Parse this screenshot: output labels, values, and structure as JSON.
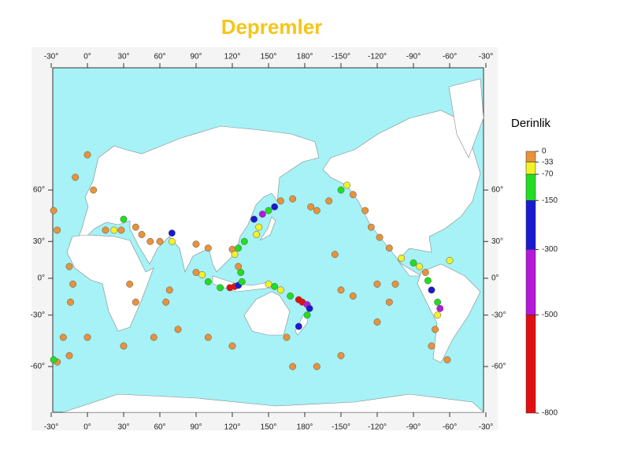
{
  "title": "Depremler",
  "legend": {
    "title": "Derinlik",
    "ticks": [
      0,
      -33,
      -70,
      -150,
      -300,
      -500,
      -800
    ],
    "colors": [
      "#e8923a",
      "#f2f22a",
      "#22dd22",
      "#1a1ad0",
      "#b418d8",
      "#e01010"
    ]
  },
  "map": {
    "lon_ticks": [
      {
        "value": -30,
        "label": "-30°"
      },
      {
        "value": 0,
        "label": "0°"
      },
      {
        "value": 30,
        "label": "30°"
      },
      {
        "value": 60,
        "label": "60°"
      },
      {
        "value": 90,
        "label": "90°"
      },
      {
        "value": 120,
        "label": "120°"
      },
      {
        "value": 150,
        "label": "150°"
      },
      {
        "value": 180,
        "label": "180°"
      },
      {
        "value": -150,
        "label": "-150°"
      },
      {
        "value": -120,
        "label": "-120°"
      },
      {
        "value": -90,
        "label": "-90°"
      },
      {
        "value": -60,
        "label": "-60°"
      },
      {
        "value": -30,
        "label": "-30°"
      }
    ],
    "lat_ticks": [
      {
        "value": 60,
        "label": "60°"
      },
      {
        "value": 30,
        "label": "30°"
      },
      {
        "value": 0,
        "label": "0°"
      },
      {
        "value": -30,
        "label": "-30°"
      },
      {
        "value": -60,
        "label": "-60°"
      }
    ],
    "earthquakes": [
      [
        -25,
        38,
        -10
      ],
      [
        -28,
        50,
        -10
      ],
      [
        -15,
        10,
        -10
      ],
      [
        -12,
        -5,
        -10
      ],
      [
        -14,
        -20,
        -10
      ],
      [
        -20,
        -45,
        -10
      ],
      [
        -15,
        -55,
        -10
      ],
      [
        -25,
        -58,
        -10
      ],
      [
        -28,
        -57,
        -80
      ],
      [
        0,
        72,
        -10
      ],
      [
        5,
        60,
        -10
      ],
      [
        -10,
        65,
        -10
      ],
      [
        15,
        38,
        -20
      ],
      [
        22,
        38,
        -50
      ],
      [
        28,
        38,
        -10
      ],
      [
        40,
        40,
        -20
      ],
      [
        45,
        35,
        -10
      ],
      [
        52,
        30,
        -10
      ],
      [
        60,
        30,
        -20
      ],
      [
        70,
        36,
        -200
      ],
      [
        70,
        30,
        -60
      ],
      [
        90,
        28,
        -10
      ],
      [
        100,
        25,
        -10
      ],
      [
        120,
        24,
        -10
      ],
      [
        30,
        45,
        -100
      ],
      [
        35,
        -5,
        -10
      ],
      [
        40,
        -20,
        -10
      ],
      [
        65,
        -20,
        -10
      ],
      [
        68,
        -10,
        -10
      ],
      [
        75,
        -40,
        -10
      ],
      [
        55,
        -45,
        -10
      ],
      [
        30,
        -50,
        -10
      ],
      [
        100,
        -45,
        -10
      ],
      [
        120,
        -50,
        -10
      ],
      [
        90,
        5,
        -20
      ],
      [
        95,
        3,
        -50
      ],
      [
        100,
        -3,
        -100
      ],
      [
        110,
        -8,
        -120
      ],
      [
        118,
        -8,
        -600
      ],
      [
        122,
        -7,
        -600
      ],
      [
        125,
        -6,
        -200
      ],
      [
        128,
        -3,
        -100
      ],
      [
        127,
        5,
        -80
      ],
      [
        125,
        10,
        -20
      ],
      [
        122,
        20,
        -40
      ],
      [
        125,
        25,
        -100
      ],
      [
        130,
        30,
        -90
      ],
      [
        140,
        35,
        -40
      ],
      [
        142,
        40,
        -60
      ],
      [
        138,
        45,
        -300
      ],
      [
        145,
        48,
        -400
      ],
      [
        150,
        50,
        -100
      ],
      [
        155,
        52,
        -200
      ],
      [
        160,
        55,
        -30
      ],
      [
        170,
        56,
        -20
      ],
      [
        -175,
        52,
        -30
      ],
      [
        -160,
        55,
        -10
      ],
      [
        -150,
        60,
        -80
      ],
      [
        -145,
        62,
        -40
      ],
      [
        -140,
        58,
        -10
      ],
      [
        -130,
        50,
        -10
      ],
      [
        -125,
        40,
        -10
      ],
      [
        -118,
        33,
        -10
      ],
      [
        -110,
        25,
        -10
      ],
      [
        -100,
        17,
        -40
      ],
      [
        -90,
        13,
        -100
      ],
      [
        -85,
        10,
        -50
      ],
      [
        -80,
        5,
        -20
      ],
      [
        -78,
        -2,
        -120
      ],
      [
        -75,
        -10,
        -200
      ],
      [
        -70,
        -20,
        -100
      ],
      [
        -68,
        -25,
        -500
      ],
      [
        -70,
        -30,
        -50
      ],
      [
        -72,
        -40,
        -10
      ],
      [
        -75,
        -50,
        -10
      ],
      [
        -60,
        15,
        -40
      ],
      [
        -62,
        -57,
        -10
      ],
      [
        150,
        -5,
        -60
      ],
      [
        155,
        -7,
        -100
      ],
      [
        160,
        -10,
        -40
      ],
      [
        168,
        -15,
        -80
      ],
      [
        175,
        -18,
        -600
      ],
      [
        178,
        -20,
        -600
      ],
      [
        -178,
        -22,
        -350
      ],
      [
        -176,
        -25,
        -200
      ],
      [
        -178,
        -30,
        -100
      ],
      [
        175,
        -38,
        -200
      ],
      [
        165,
        -45,
        -10
      ],
      [
        170,
        -60,
        -10
      ],
      [
        -170,
        -60,
        -10
      ],
      [
        -150,
        -55,
        -10
      ],
      [
        -120,
        -35,
        -10
      ],
      [
        -110,
        -20,
        -10
      ],
      [
        -105,
        -5,
        -10
      ],
      [
        -120,
        -5,
        -10
      ],
      [
        -150,
        -10,
        -10
      ],
      [
        -140,
        -15,
        -10
      ],
      [
        -155,
        20,
        -20
      ],
      [
        -170,
        50,
        -20
      ],
      [
        0,
        -45,
        -20
      ]
    ]
  }
}
